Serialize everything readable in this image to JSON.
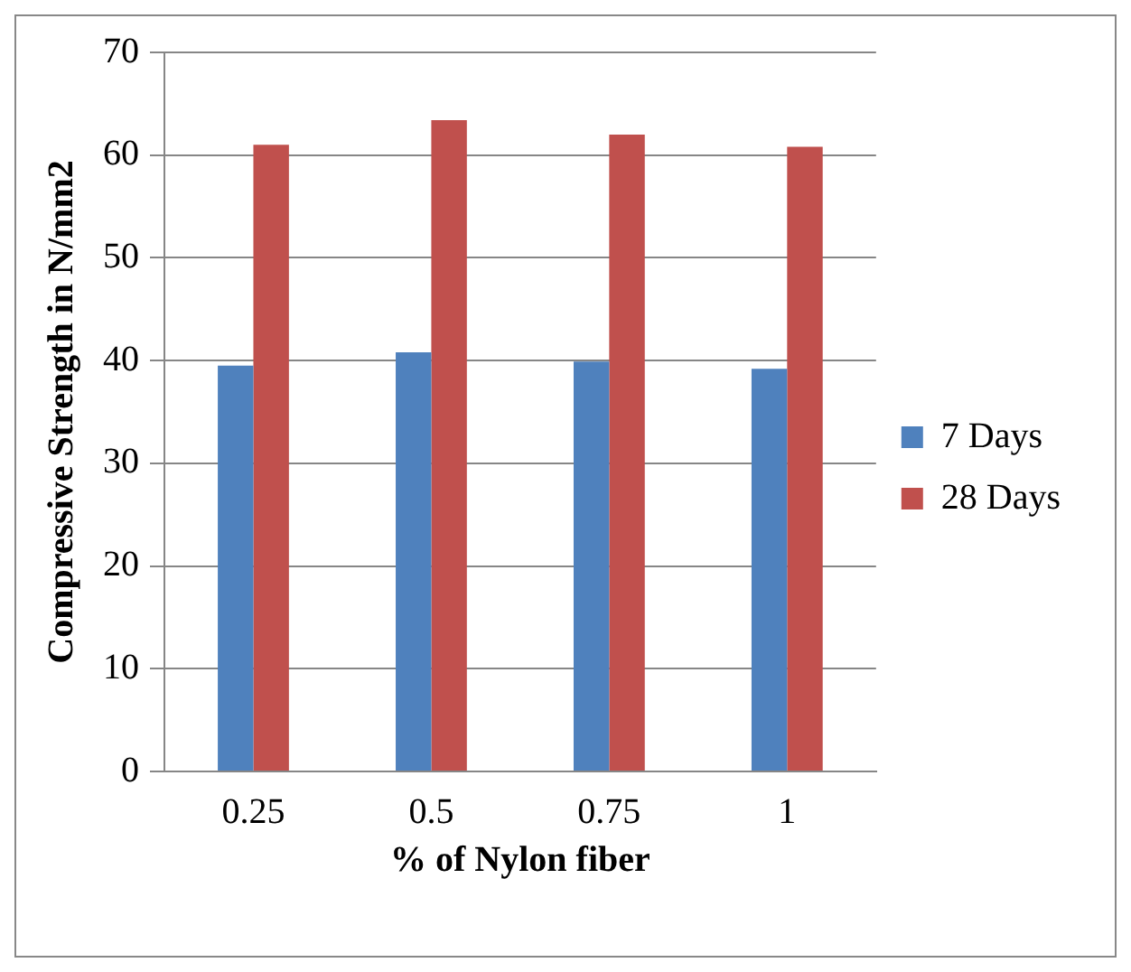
{
  "chart_data": {
    "type": "bar",
    "xlabel": "% of Nylon fiber",
    "ylabel": "Compressive Strength in N/mm2",
    "categories": [
      "0.25",
      "0.5",
      "0.75",
      "1"
    ],
    "series": [
      {
        "name": "7 Days",
        "color": "#4f81bd",
        "values": [
          39.5,
          40.8,
          39.9,
          39.2
        ]
      },
      {
        "name": "28 Days",
        "color": "#c0504d",
        "values": [
          61.0,
          63.4,
          62.0,
          60.8
        ]
      }
    ],
    "ylim": [
      0,
      70
    ],
    "yticks": [
      0,
      10,
      20,
      30,
      40,
      50,
      60,
      70
    ],
    "grid": "y",
    "legend": "right"
  }
}
